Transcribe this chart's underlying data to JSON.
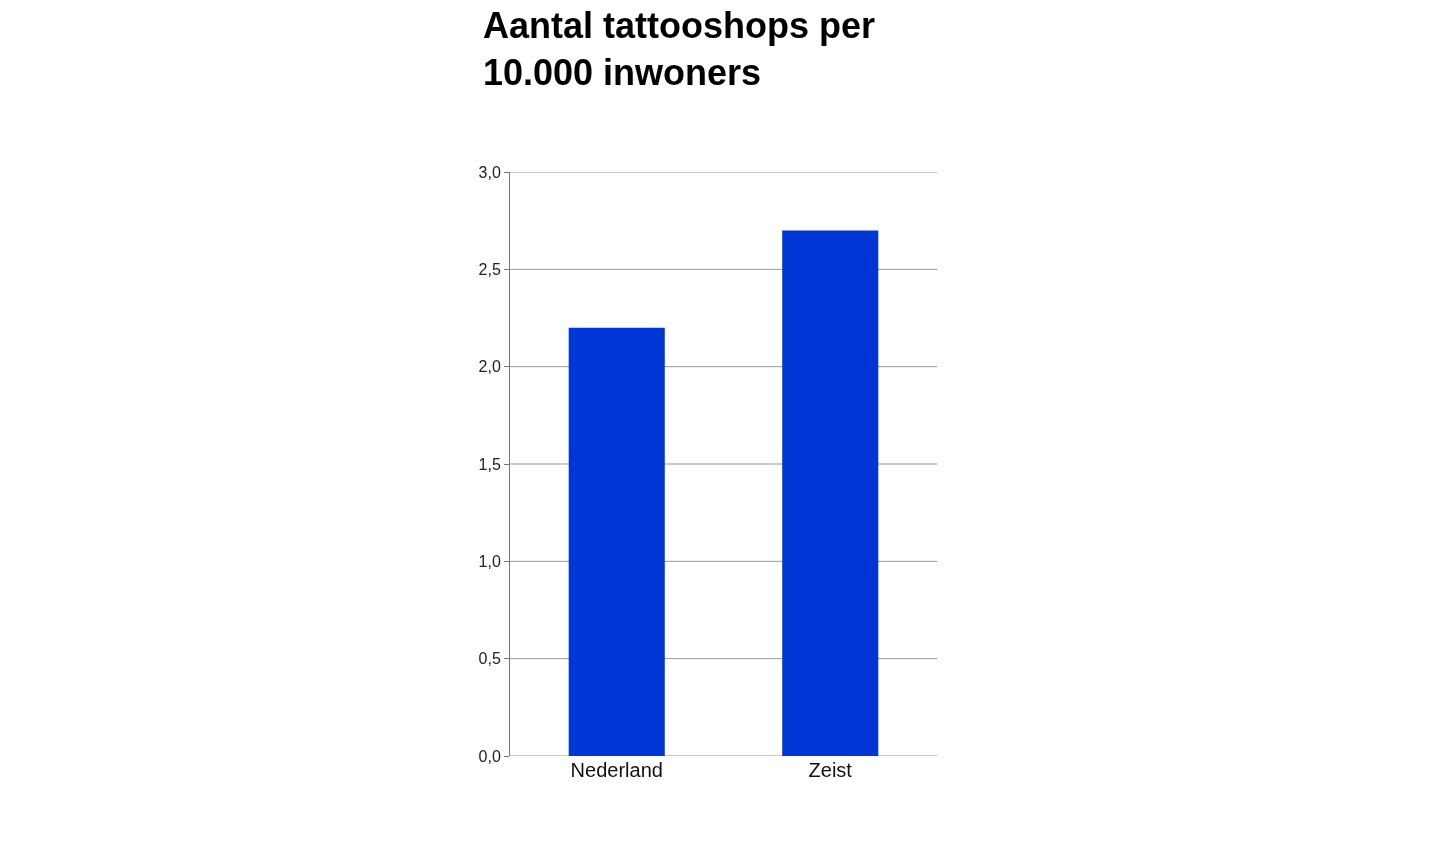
{
  "chart_data": {
    "type": "bar",
    "title": "Aantal tattooshops per 10.000 inwoners",
    "categories": [
      "Nederland",
      "Zeist"
    ],
    "values": [
      2.2,
      2.7
    ],
    "color": "#0036d6",
    "ylim": [
      0,
      3
    ],
    "yticks": [
      {
        "value": 0,
        "label": "0,0"
      },
      {
        "value": 0.5,
        "label": "0,5"
      },
      {
        "value": 1,
        "label": "1,0"
      },
      {
        "value": 1.5,
        "label": "1,5"
      },
      {
        "value": 2,
        "label": "2,0"
      },
      {
        "value": 2.5,
        "label": "2,5"
      },
      {
        "value": 3,
        "label": "3,0"
      }
    ],
    "grid": "y"
  }
}
